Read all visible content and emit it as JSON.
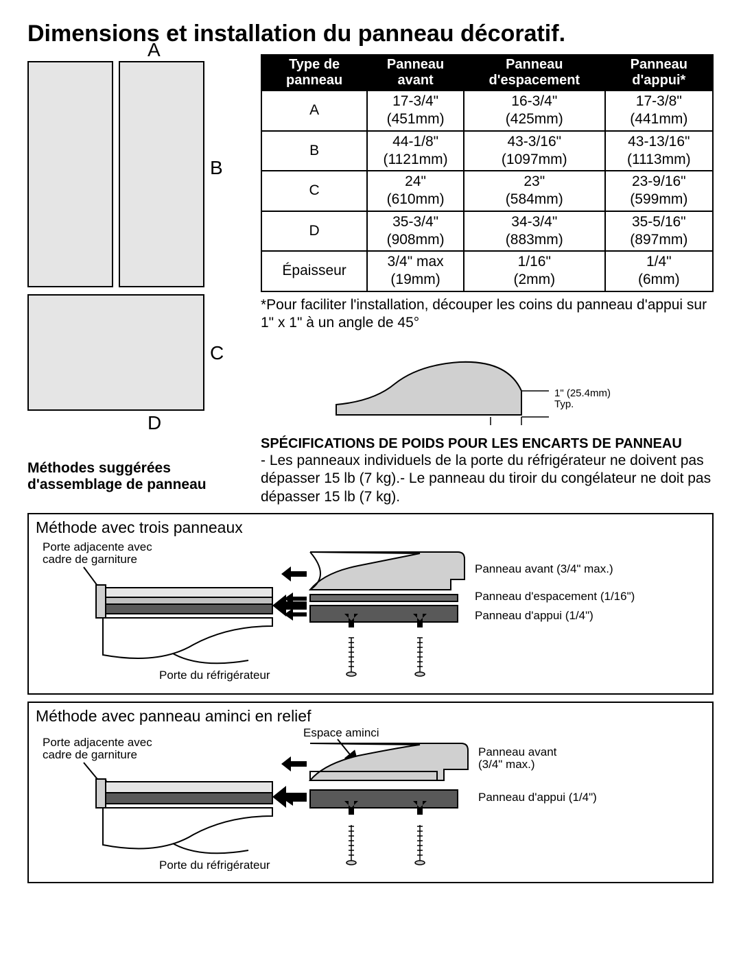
{
  "title": "Dimensions et installation du panneau décoratif.",
  "panel_labels": {
    "A": "A",
    "B": "B",
    "C": "C",
    "D": "D"
  },
  "table": {
    "headers": [
      "Type de panneau",
      "Panneau avant",
      "Panneau d'espacement",
      "Panneau d'appui*"
    ],
    "rows": [
      {
        "label": "A",
        "front": [
          "17-3/4\"",
          "(451mm)"
        ],
        "spacer": [
          "16-3/4\"",
          "(425mm)"
        ],
        "backer": [
          "17-3/8\"",
          "(441mm)"
        ]
      },
      {
        "label": "B",
        "front": [
          "44-1/8\"",
          "(1121mm)"
        ],
        "spacer": [
          "43-3/16\"",
          "(1097mm)"
        ],
        "backer": [
          "43-13/16\"",
          "(1113mm)"
        ]
      },
      {
        "label": "C",
        "front": [
          "24\"",
          "(610mm)"
        ],
        "spacer": [
          "23\"",
          "(584mm)"
        ],
        "backer": [
          "23-9/16\"",
          "(599mm)"
        ]
      },
      {
        "label": "D",
        "front": [
          "35-3/4\"",
          "(908mm)"
        ],
        "spacer": [
          "34-3/4\"",
          "(883mm)"
        ],
        "backer": [
          "35-5/16\"",
          "(897mm)"
        ]
      },
      {
        "label": "Épaisseur",
        "front": [
          "3/4\" max",
          "(19mm)"
        ],
        "spacer": [
          "1/16\"",
          "(2mm)"
        ],
        "backer": [
          "1/4\"",
          "(6mm)"
        ]
      }
    ]
  },
  "note_star": "*Pour faciliter l'installation, découper les coins du panneau d'appui sur 1\" x 1\" à un angle de 45°",
  "corner_label": "1\" (25.4mm) Typ.",
  "weight_heading": "SPÉCIFICATIONS DE POIDS POUR LES ENCARTS DE PANNEAU",
  "weight_text": "- Les panneaux individuels de la porte du réfrigérateur ne doivent pas dépasser 15 lb (7 kg).- Le panneau du tiroir du congélateur ne doit pas dépasser 15 lb (7 kg).",
  "methods_heading": "Méthodes suggérées d'assemblage de panneau",
  "method1": {
    "title": "Méthode avec trois panneaux",
    "label_adj": "Porte adjacente avec cadre de garniture",
    "label_door": "Porte du réfrigérateur",
    "label_front": "Panneau avant (3/4\" max.)",
    "label_spacer": "Panneau d'espacement (1/16\")",
    "label_backer": "Panneau d'appui (1/4\")"
  },
  "method2": {
    "title": "Méthode avec panneau aminci en relief",
    "label_adj": "Porte adjacente avec cadre de garniture",
    "label_door": "Porte du réfrigérateur",
    "label_thin": "Espace aminci",
    "label_front": "Panneau avant (3/4\" max.)",
    "label_backer": "Panneau d'appui (1/4\")"
  },
  "colors": {
    "light": "#e5e5e5",
    "mid": "#c0c0c0",
    "midlight": "#d0d0d0",
    "dark": "#595959",
    "line": "#6b6b6b",
    "black": "#000000"
  }
}
